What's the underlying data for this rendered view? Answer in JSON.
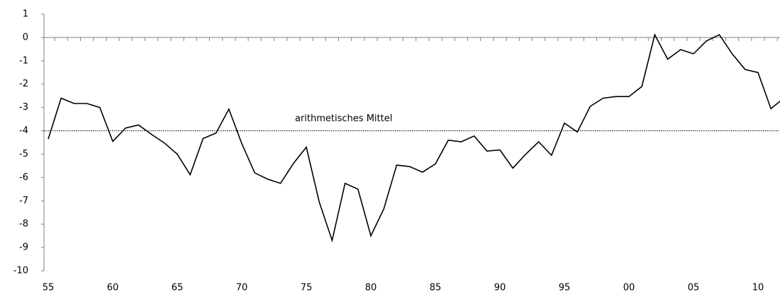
{
  "chart_data": {
    "type": "line",
    "categories": [
      "55",
      null,
      null,
      null,
      null,
      "60",
      null,
      null,
      null,
      null,
      "65",
      null,
      null,
      null,
      null,
      "70",
      null,
      null,
      null,
      null,
      "75",
      null,
      null,
      null,
      null,
      "80",
      null,
      null,
      null,
      null,
      "85",
      null,
      null,
      null,
      null,
      "90",
      null,
      null,
      null,
      null,
      "95",
      null,
      null,
      null,
      null,
      "00",
      null,
      null,
      null,
      null,
      "05",
      null,
      null,
      null,
      null,
      "10",
      null,
      null
    ],
    "values": [
      -4.35,
      -2.6,
      -2.83,
      -2.83,
      -3.0,
      -4.45,
      -3.88,
      -3.75,
      -4.15,
      -4.52,
      -5.0,
      -5.88,
      -4.33,
      -4.1,
      -3.07,
      -4.55,
      -5.8,
      -6.07,
      -6.25,
      -5.4,
      -4.7,
      -7.05,
      -8.7,
      -6.25,
      -6.5,
      -8.5,
      -7.35,
      -5.47,
      -5.53,
      -5.77,
      -5.42,
      -4.4,
      -4.47,
      -4.22,
      -4.87,
      -4.82,
      -5.6,
      -5.0,
      -4.47,
      -5.05,
      -3.67,
      -4.05,
      -2.95,
      -2.6,
      -2.53,
      -2.53,
      -2.1,
      0.12,
      -0.93,
      -0.52,
      -0.7,
      -0.15,
      0.12,
      -0.7,
      -1.37,
      -1.5,
      -3.05,
      -2.6
    ],
    "color": "#000000",
    "mean": {
      "value": -4,
      "label": "arithmetisches Mittel"
    },
    "ylim": [
      -10,
      1
    ],
    "yticks": [
      -10,
      -9,
      -8,
      -7,
      -6,
      -5,
      -4,
      -3,
      -2,
      -1,
      0,
      1
    ]
  }
}
